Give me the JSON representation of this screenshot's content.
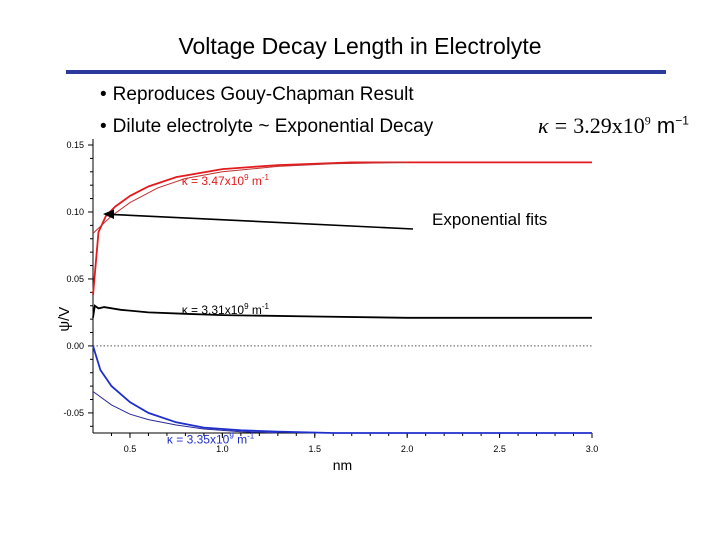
{
  "slide": {
    "title": "Voltage Decay Length in Electrolyte",
    "rule_color": "#2b3a9c",
    "bullets": [
      "Reproduces Gouy-Chapman Result",
      "Dilute electrolyte ~ Exponential Decay"
    ],
    "kappa_symbol": "κ",
    "kappa_eq": "=",
    "kappa_value": "3.29x10",
    "kappa_exp": "9",
    "kappa_unit": "m",
    "kappa_unit_exp": "−1"
  },
  "chart_data": {
    "type": "line",
    "xlabel": "nm",
    "ylabel": "ψ/V",
    "xlim": [
      0.3,
      3.0
    ],
    "ylim": [
      -0.065,
      0.15
    ],
    "x_ticks": [
      "0.5",
      "1.0",
      "1.5",
      "2.0",
      "2.5",
      "3.0"
    ],
    "y_ticks": [
      "0.15",
      "0.10",
      "0.05",
      "0.00",
      "-0.05"
    ],
    "grid": false,
    "series": [
      {
        "name": "κ = 3.47x10⁹ m⁻¹",
        "color": "#e41a1c",
        "kind": "data",
        "x": [
          0.3,
          0.33,
          0.37,
          0.42,
          0.5,
          0.6,
          0.75,
          1.0,
          1.3,
          1.7,
          2.2,
          2.6,
          3.0
        ],
        "y": [
          0.038,
          0.085,
          0.097,
          0.104,
          0.112,
          0.119,
          0.126,
          0.132,
          0.135,
          0.137,
          0.137,
          0.137,
          0.137
        ]
      },
      {
        "name": "",
        "color": "#c03030",
        "kind": "fit",
        "x": [
          0.3,
          0.4,
          0.5,
          0.65,
          0.8,
          1.0,
          1.3,
          1.6,
          2.0
        ],
        "y": [
          0.084,
          0.097,
          0.107,
          0.118,
          0.125,
          0.13,
          0.134,
          0.136,
          0.137
        ]
      },
      {
        "name": "κ = 3.31x10⁹ m⁻¹",
        "color": "#000000",
        "kind": "data",
        "x": [
          0.3,
          0.31,
          0.33,
          0.36,
          0.45,
          0.6,
          0.8,
          1.0,
          1.5,
          2.0,
          3.0
        ],
        "y": [
          0.021,
          0.03,
          0.028,
          0.029,
          0.027,
          0.025,
          0.024,
          0.023,
          0.022,
          0.021,
          0.021
        ]
      },
      {
        "name": "",
        "color": "#555555",
        "kind": "dotted",
        "x": [
          0.3,
          3.0
        ],
        "y": [
          0.0,
          0.0
        ]
      },
      {
        "name": "κ = 3.35x10⁹ m⁻¹",
        "color": "#1f2fcc",
        "kind": "data",
        "x": [
          0.3,
          0.34,
          0.4,
          0.5,
          0.6,
          0.75,
          0.9,
          1.1,
          1.3,
          1.6,
          2.0,
          2.5,
          3.0
        ],
        "y": [
          0.0,
          -0.018,
          -0.03,
          -0.042,
          -0.05,
          -0.057,
          -0.061,
          -0.063,
          -0.064,
          -0.065,
          -0.065,
          -0.065,
          -0.065
        ]
      },
      {
        "name": "",
        "color": "#2a2a9a",
        "kind": "fit",
        "x": [
          0.3,
          0.4,
          0.5,
          0.6,
          0.75,
          0.9,
          1.1,
          1.3
        ],
        "y": [
          -0.034,
          -0.044,
          -0.051,
          -0.055,
          -0.059,
          -0.062,
          -0.064,
          -0.065
        ]
      }
    ],
    "annotation": {
      "text": "Exponential fits"
    },
    "labels": [
      {
        "text": "κ = 3.47x10",
        "exp": "9",
        "unit": " m",
        "unit_exp": "-1",
        "color": "#e41a1c"
      },
      {
        "text": "κ = 3.31x10",
        "exp": "9",
        "unit": " m",
        "unit_exp": "-1",
        "color": "#000000"
      },
      {
        "text": "κ = 3.35x10",
        "exp": "9",
        "unit": " m",
        "unit_exp": "-1",
        "color": "#1f2fcc"
      }
    ]
  }
}
